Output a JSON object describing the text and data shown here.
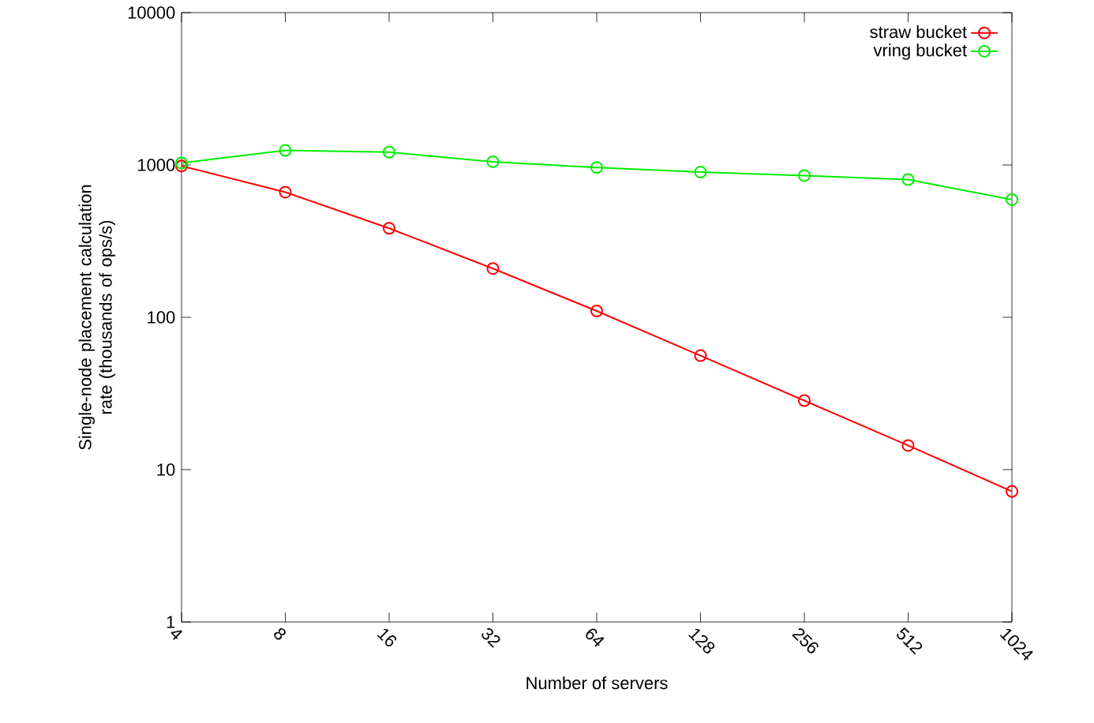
{
  "chart_data": {
    "type": "line",
    "xlabel": "Number of servers",
    "ylabel": "Single-node placement calculation rate (thousands of ops/s)",
    "x": [
      4,
      8,
      16,
      32,
      64,
      128,
      256,
      512,
      1024
    ],
    "series": [
      {
        "name": "straw bucket",
        "color": "#ff0000",
        "values": [
          985,
          663,
          384,
          209,
          110,
          56,
          28.4,
          14.4,
          7.2
        ]
      },
      {
        "name": "vring bucket",
        "color": "#00ee00",
        "values": [
          1030,
          1247,
          1214,
          1050,
          962,
          897,
          852,
          802,
          592
        ]
      }
    ],
    "log": "xy",
    "xlim": [
      4,
      1024
    ],
    "ylim": [
      1,
      10000
    ],
    "xticks": [
      4,
      8,
      16,
      32,
      64,
      128,
      256,
      512,
      1024
    ],
    "yticks": [
      1,
      10,
      100,
      1000,
      10000
    ],
    "legend": "top right",
    "marker": "circle",
    "line_style": "solid"
  }
}
